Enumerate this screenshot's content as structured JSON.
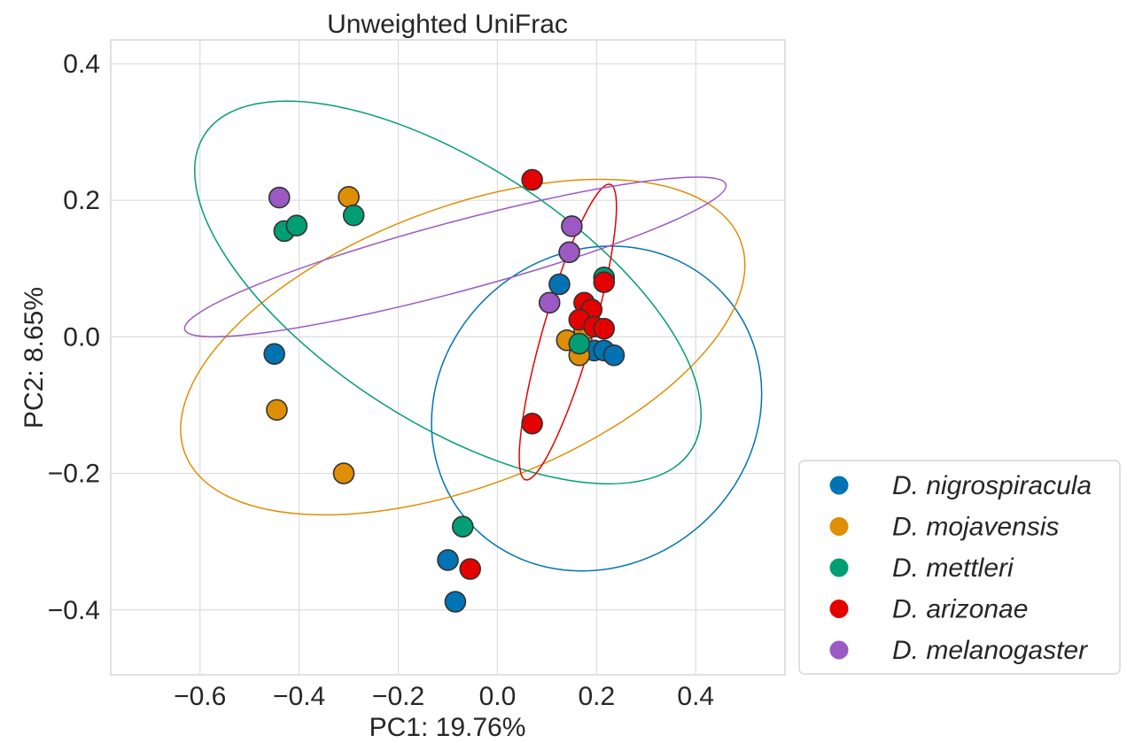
{
  "chart_data": {
    "type": "scatter",
    "title": "Unweighted UniFrac",
    "xlabel": "PC1: 19.76%",
    "ylabel": "PC2: 8.65%",
    "xlim": [
      -0.78,
      0.58
    ],
    "ylim": [
      -0.495,
      0.435
    ],
    "xticks": [
      -0.6,
      -0.4,
      -0.2,
      0.0,
      0.2,
      0.4
    ],
    "xtick_labels": [
      "−0.6",
      "−0.4",
      "−0.2",
      "0.0",
      "0.2",
      "0.4"
    ],
    "yticks": [
      0.4,
      0.2,
      0.0,
      -0.2,
      -0.4
    ],
    "ytick_labels": [
      "0.4",
      "0.2",
      "0.0",
      "−0.2",
      "−0.4"
    ],
    "grid": true,
    "legend_position": "lower right, outside plot",
    "series": [
      {
        "name": "D. nigrospiracula",
        "color": "#0173b2",
        "x": [
          -0.45,
          0.125,
          0.165,
          0.195,
          0.215,
          0.235,
          -0.1,
          -0.085
        ],
        "y": [
          -0.025,
          0.077,
          -0.015,
          -0.02,
          -0.02,
          -0.027,
          -0.327,
          -0.388
        ],
        "ellipse": {
          "cx": 0.2,
          "cy": -0.105,
          "rx": 0.345,
          "ry": 0.315,
          "angle_deg": 40
        }
      },
      {
        "name": "D. mojavensis",
        "color": "#de8f05",
        "x": [
          -0.3,
          -0.445,
          -0.31,
          0.14,
          0.165,
          0.175
        ],
        "y": [
          0.205,
          -0.107,
          -0.2,
          -0.005,
          -0.027,
          0.01
        ],
        "ellipse": {
          "cx": -0.07,
          "cy": -0.015,
          "rx": 0.6,
          "ry": 0.28,
          "angle_deg": 21
        }
      },
      {
        "name": "D. mettleri",
        "color": "#029e73",
        "x": [
          -0.43,
          -0.405,
          -0.29,
          -0.07,
          0.165,
          0.215
        ],
        "y": [
          0.155,
          0.163,
          0.178,
          -0.278,
          -0.01,
          0.087
        ],
        "ellipse": {
          "cx": -0.1,
          "cy": 0.065,
          "rx": 0.585,
          "ry": 0.26,
          "angle_deg": -33
        }
      },
      {
        "name": "D. arizonae",
        "color": "#e50000",
        "x": [
          0.07,
          0.175,
          0.19,
          0.165,
          0.195,
          0.215,
          0.215,
          0.07,
          -0.055
        ],
        "y": [
          0.23,
          0.05,
          0.04,
          0.025,
          0.015,
          0.012,
          0.08,
          -0.127,
          -0.34
        ],
        "ellipse": {
          "cx": 0.142,
          "cy": 0.007,
          "rx": 0.31,
          "ry": 0.05,
          "angle_deg": 74
        }
      },
      {
        "name": "D. melanogaster",
        "color": "#9c59c4",
        "x": [
          -0.44,
          0.15,
          0.145,
          0.105
        ],
        "y": [
          0.204,
          0.162,
          0.124,
          0.05
        ],
        "ellipse": {
          "cx": -0.085,
          "cy": 0.117,
          "rx": 0.565,
          "ry": 0.07,
          "angle_deg": 15
        }
      }
    ]
  },
  "legend": {
    "items": [
      {
        "label": "D. nigrospiracula",
        "color": "#0173b2"
      },
      {
        "label": "D. mojavensis",
        "color": "#de8f05"
      },
      {
        "label": "D. mettleri",
        "color": "#029e73"
      },
      {
        "label": "D. arizonae",
        "color": "#e50000"
      },
      {
        "label": "D. melanogaster",
        "color": "#9c59c4"
      }
    ]
  }
}
